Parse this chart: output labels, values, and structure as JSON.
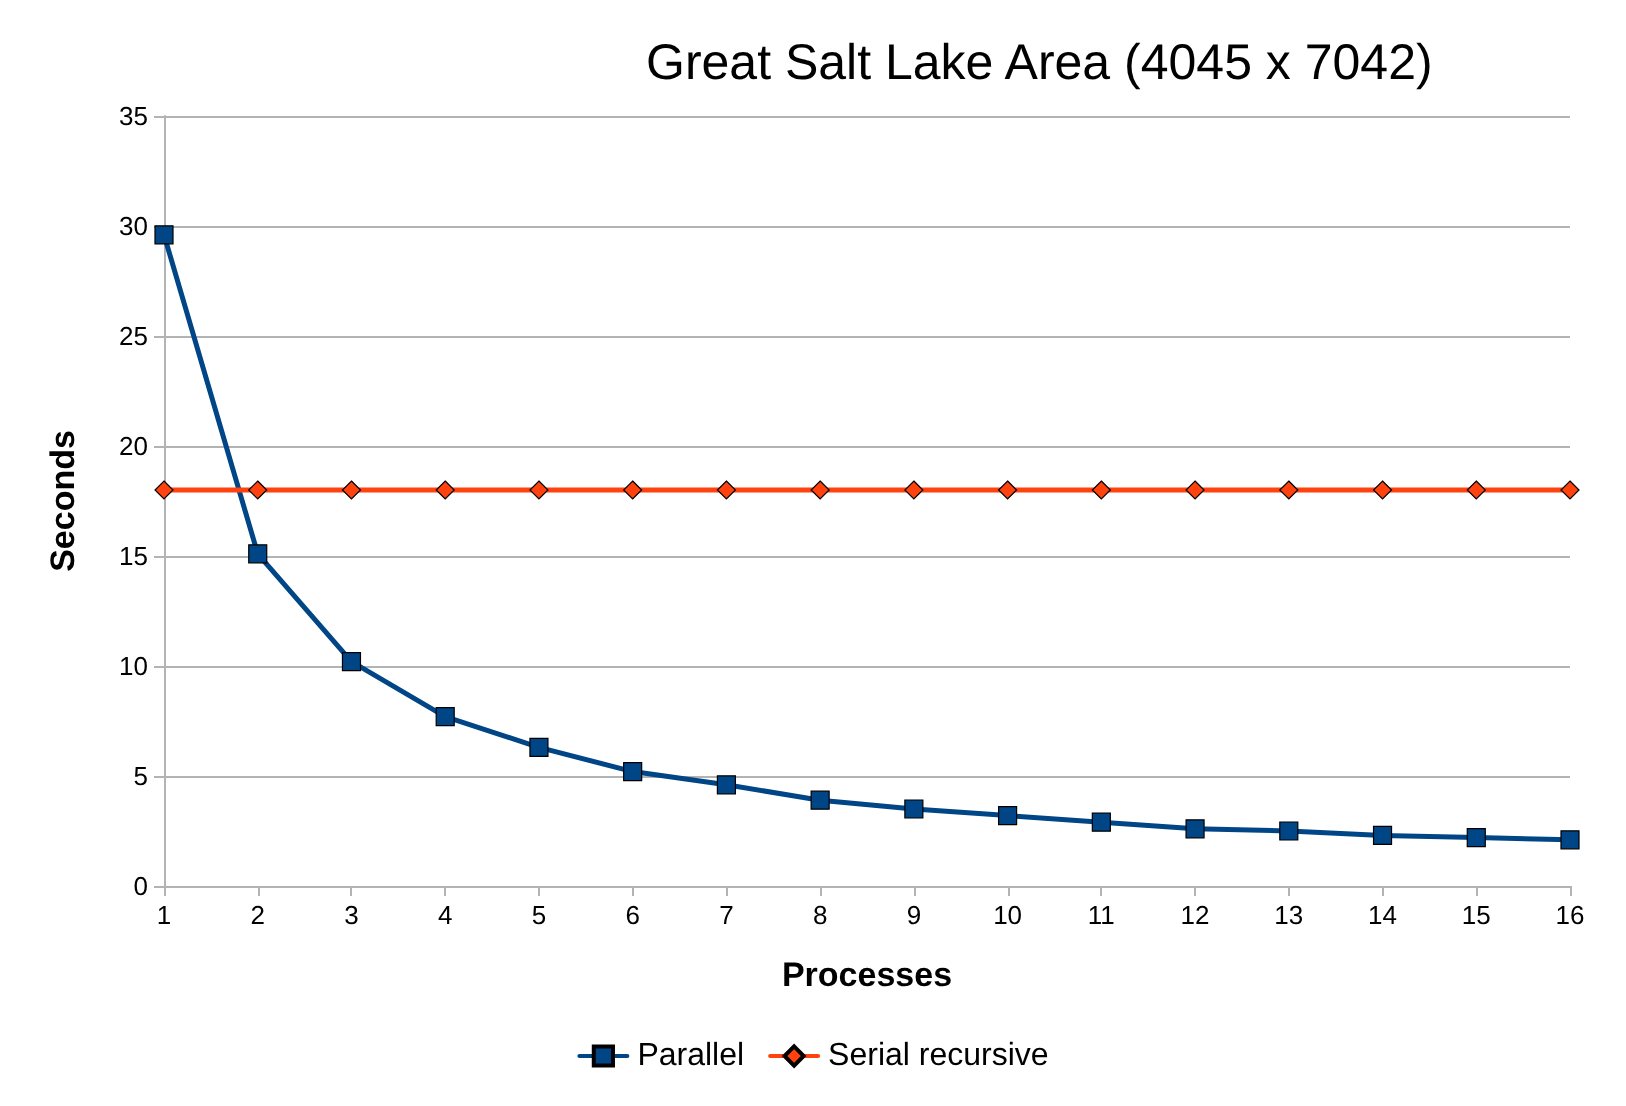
{
  "chart_data": {
    "type": "line",
    "title": "Great Salt Lake Area (4045 x 7042)",
    "xlabel": "Processes",
    "ylabel": "Seconds",
    "x": [
      1,
      2,
      3,
      4,
      5,
      6,
      7,
      8,
      9,
      10,
      11,
      12,
      13,
      14,
      15,
      16
    ],
    "series": [
      {
        "name": "Parallel",
        "color": "#004586",
        "marker": "square",
        "values": [
          29.6,
          15.1,
          10.2,
          7.7,
          6.3,
          5.2,
          4.6,
          3.9,
          3.5,
          3.2,
          2.9,
          2.6,
          2.5,
          2.3,
          2.2,
          2.1
        ]
      },
      {
        "name": "Serial recursive",
        "color": "#ff420e",
        "marker": "diamond",
        "values": [
          18,
          18,
          18,
          18,
          18,
          18,
          18,
          18,
          18,
          18,
          18,
          18,
          18,
          18,
          18,
          18
        ]
      }
    ],
    "xlim": [
      1,
      16
    ],
    "xticks": [
      1,
      2,
      3,
      4,
      5,
      6,
      7,
      8,
      9,
      10,
      11,
      12,
      13,
      14,
      15,
      16
    ],
    "ylim": [
      0,
      35
    ],
    "yticks": [
      0,
      5,
      10,
      15,
      20,
      25,
      30,
      35
    ],
    "grid": "y",
    "legend": "bottom",
    "line_style": "solid"
  }
}
